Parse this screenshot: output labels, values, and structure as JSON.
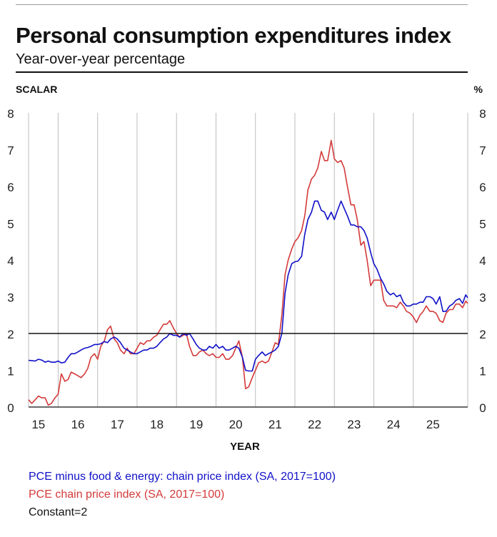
{
  "header": {
    "title": "Personal consumption expenditures index",
    "subtitle": "Year-over-year percentage"
  },
  "axes": {
    "left_label": "SCALAR",
    "right_label": "%",
    "x_label": "YEAR"
  },
  "legend": [
    {
      "label": "PCE minus food & energy: chain price index (SA, 2017=100)",
      "color": "#1010c8"
    },
    {
      "label": "PCE chain price index (SA, 2017=100)",
      "color": "#d43a3a"
    },
    {
      "label": "Constant=2",
      "color": "#111111"
    }
  ],
  "chart_data": {
    "type": "line",
    "xlabel": "YEAR",
    "ylabel_left": "SCALAR",
    "ylabel_right": "%",
    "xlim": [
      2014.75,
      2025.88
    ],
    "ylim": [
      0,
      8
    ],
    "x_ticks": [
      2015,
      2016,
      2017,
      2018,
      2019,
      2020,
      2021,
      2022,
      2023,
      2024,
      2025
    ],
    "x_tick_labels": [
      "15",
      "16",
      "17",
      "18",
      "19",
      "20",
      "21",
      "22",
      "23",
      "24",
      "25"
    ],
    "y_ticks": [
      0,
      1,
      2,
      3,
      4,
      5,
      6,
      7,
      8
    ],
    "grid": "vertical",
    "series": [
      {
        "name": "PCE minus food & energy: chain price index (SA, 2017=100)",
        "color": "#1010c8",
        "points": [
          [
            2014.75,
            1.27
          ],
          [
            2014.92,
            1.25
          ],
          [
            2015.0,
            1.3
          ],
          [
            2015.08,
            1.28
          ],
          [
            2015.17,
            1.22
          ],
          [
            2015.25,
            1.25
          ],
          [
            2015.33,
            1.22
          ],
          [
            2015.42,
            1.22
          ],
          [
            2015.5,
            1.25
          ],
          [
            2015.58,
            1.2
          ],
          [
            2015.67,
            1.22
          ],
          [
            2015.75,
            1.35
          ],
          [
            2015.83,
            1.45
          ],
          [
            2015.92,
            1.45
          ],
          [
            2016.0,
            1.5
          ],
          [
            2016.08,
            1.55
          ],
          [
            2016.17,
            1.6
          ],
          [
            2016.25,
            1.62
          ],
          [
            2016.33,
            1.65
          ],
          [
            2016.42,
            1.7
          ],
          [
            2016.5,
            1.7
          ],
          [
            2016.58,
            1.72
          ],
          [
            2016.67,
            1.78
          ],
          [
            2016.75,
            1.75
          ],
          [
            2016.83,
            1.85
          ],
          [
            2016.92,
            1.9
          ],
          [
            2017.0,
            1.85
          ],
          [
            2017.08,
            1.75
          ],
          [
            2017.17,
            1.6
          ],
          [
            2017.25,
            1.55
          ],
          [
            2017.33,
            1.5
          ],
          [
            2017.42,
            1.45
          ],
          [
            2017.5,
            1.45
          ],
          [
            2017.58,
            1.5
          ],
          [
            2017.67,
            1.55
          ],
          [
            2017.75,
            1.55
          ],
          [
            2017.83,
            1.6
          ],
          [
            2017.92,
            1.6
          ],
          [
            2018.0,
            1.65
          ],
          [
            2018.08,
            1.75
          ],
          [
            2018.17,
            1.85
          ],
          [
            2018.25,
            1.9
          ],
          [
            2018.33,
            2.0
          ],
          [
            2018.42,
            1.95
          ],
          [
            2018.5,
            1.95
          ],
          [
            2018.58,
            1.9
          ],
          [
            2018.67,
            2.0
          ],
          [
            2018.75,
            1.95
          ],
          [
            2018.83,
            2.0
          ],
          [
            2018.92,
            1.85
          ],
          [
            2019.0,
            1.7
          ],
          [
            2019.08,
            1.6
          ],
          [
            2019.17,
            1.55
          ],
          [
            2019.25,
            1.55
          ],
          [
            2019.33,
            1.65
          ],
          [
            2019.42,
            1.6
          ],
          [
            2019.5,
            1.7
          ],
          [
            2019.58,
            1.6
          ],
          [
            2019.67,
            1.65
          ],
          [
            2019.75,
            1.55
          ],
          [
            2019.83,
            1.55
          ],
          [
            2019.92,
            1.6
          ],
          [
            2020.0,
            1.65
          ],
          [
            2020.08,
            1.6
          ],
          [
            2020.17,
            1.35
          ],
          [
            2020.25,
            1.0
          ],
          [
            2020.33,
            0.98
          ],
          [
            2020.42,
            0.98
          ],
          [
            2020.5,
            1.3
          ],
          [
            2020.58,
            1.4
          ],
          [
            2020.67,
            1.5
          ],
          [
            2020.75,
            1.4
          ],
          [
            2020.83,
            1.45
          ],
          [
            2020.92,
            1.5
          ],
          [
            2021.0,
            1.55
          ],
          [
            2021.08,
            1.65
          ],
          [
            2021.17,
            2.0
          ],
          [
            2021.25,
            3.1
          ],
          [
            2021.33,
            3.6
          ],
          [
            2021.42,
            3.9
          ],
          [
            2021.5,
            3.95
          ],
          [
            2021.58,
            3.97
          ],
          [
            2021.67,
            4.1
          ],
          [
            2021.75,
            4.7
          ],
          [
            2021.83,
            5.1
          ],
          [
            2021.92,
            5.3
          ],
          [
            2022.0,
            5.6
          ],
          [
            2022.08,
            5.6
          ],
          [
            2022.17,
            5.35
          ],
          [
            2022.25,
            5.3
          ],
          [
            2022.33,
            5.1
          ],
          [
            2022.42,
            5.3
          ],
          [
            2022.5,
            5.1
          ],
          [
            2022.58,
            5.35
          ],
          [
            2022.67,
            5.6
          ],
          [
            2022.75,
            5.4
          ],
          [
            2022.83,
            5.2
          ],
          [
            2022.92,
            4.95
          ],
          [
            2023.0,
            4.95
          ],
          [
            2023.08,
            4.9
          ],
          [
            2023.17,
            4.9
          ],
          [
            2023.25,
            4.8
          ],
          [
            2023.33,
            4.6
          ],
          [
            2023.42,
            4.2
          ],
          [
            2023.5,
            3.9
          ],
          [
            2023.58,
            3.75
          ],
          [
            2023.67,
            3.5
          ],
          [
            2023.75,
            3.35
          ],
          [
            2023.83,
            3.15
          ],
          [
            2023.92,
            3.05
          ],
          [
            2024.0,
            3.1
          ],
          [
            2024.08,
            3.0
          ],
          [
            2024.17,
            3.05
          ],
          [
            2024.25,
            2.85
          ],
          [
            2024.33,
            2.75
          ],
          [
            2024.42,
            2.75
          ],
          [
            2024.5,
            2.8
          ],
          [
            2024.58,
            2.8
          ],
          [
            2024.67,
            2.85
          ],
          [
            2024.75,
            2.85
          ],
          [
            2024.83,
            3.0
          ],
          [
            2024.92,
            3.0
          ],
          [
            2025.0,
            2.95
          ],
          [
            2025.08,
            2.8
          ],
          [
            2025.17,
            3.0
          ],
          [
            2025.25,
            2.6
          ],
          [
            2025.33,
            2.6
          ],
          [
            2025.42,
            2.75
          ],
          [
            2025.5,
            2.8
          ],
          [
            2025.58,
            2.9
          ],
          [
            2025.67,
            2.95
          ],
          [
            2025.75,
            2.82
          ],
          [
            2025.83,
            3.05
          ],
          [
            2025.88,
            2.97
          ]
        ]
      },
      {
        "name": "PCE chain price index (SA, 2017=100)",
        "color": "#d43a3a",
        "points": [
          [
            2014.75,
            0.2
          ],
          [
            2014.83,
            0.1
          ],
          [
            2014.92,
            0.2
          ],
          [
            2015.0,
            0.3
          ],
          [
            2015.08,
            0.25
          ],
          [
            2015.17,
            0.25
          ],
          [
            2015.25,
            0.05
          ],
          [
            2015.33,
            0.1
          ],
          [
            2015.42,
            0.25
          ],
          [
            2015.5,
            0.35
          ],
          [
            2015.58,
            0.9
          ],
          [
            2015.67,
            0.7
          ],
          [
            2015.75,
            0.75
          ],
          [
            2015.83,
            0.95
          ],
          [
            2015.92,
            0.9
          ],
          [
            2016.0,
            0.85
          ],
          [
            2016.08,
            0.8
          ],
          [
            2016.17,
            0.9
          ],
          [
            2016.25,
            1.05
          ],
          [
            2016.33,
            1.35
          ],
          [
            2016.42,
            1.45
          ],
          [
            2016.5,
            1.3
          ],
          [
            2016.58,
            1.65
          ],
          [
            2016.67,
            1.8
          ],
          [
            2016.75,
            2.1
          ],
          [
            2016.83,
            2.2
          ],
          [
            2016.92,
            1.85
          ],
          [
            2017.0,
            1.75
          ],
          [
            2017.08,
            1.55
          ],
          [
            2017.17,
            1.45
          ],
          [
            2017.25,
            1.6
          ],
          [
            2017.33,
            1.45
          ],
          [
            2017.42,
            1.45
          ],
          [
            2017.5,
            1.6
          ],
          [
            2017.58,
            1.75
          ],
          [
            2017.67,
            1.7
          ],
          [
            2017.75,
            1.8
          ],
          [
            2017.83,
            1.8
          ],
          [
            2017.92,
            1.9
          ],
          [
            2018.0,
            1.95
          ],
          [
            2018.08,
            2.1
          ],
          [
            2018.17,
            2.25
          ],
          [
            2018.25,
            2.25
          ],
          [
            2018.33,
            2.35
          ],
          [
            2018.42,
            2.15
          ],
          [
            2018.5,
            2.0
          ],
          [
            2018.58,
            1.9
          ],
          [
            2018.67,
            1.95
          ],
          [
            2018.75,
            2.0
          ],
          [
            2018.83,
            1.65
          ],
          [
            2018.92,
            1.4
          ],
          [
            2019.0,
            1.4
          ],
          [
            2019.08,
            1.5
          ],
          [
            2019.17,
            1.55
          ],
          [
            2019.25,
            1.45
          ],
          [
            2019.33,
            1.4
          ],
          [
            2019.42,
            1.45
          ],
          [
            2019.5,
            1.35
          ],
          [
            2019.58,
            1.35
          ],
          [
            2019.67,
            1.45
          ],
          [
            2019.75,
            1.3
          ],
          [
            2019.83,
            1.3
          ],
          [
            2019.92,
            1.4
          ],
          [
            2020.0,
            1.6
          ],
          [
            2020.08,
            1.8
          ],
          [
            2020.17,
            1.35
          ],
          [
            2020.25,
            0.5
          ],
          [
            2020.33,
            0.55
          ],
          [
            2020.42,
            0.8
          ],
          [
            2020.5,
            1.0
          ],
          [
            2020.58,
            1.2
          ],
          [
            2020.67,
            1.25
          ],
          [
            2020.75,
            1.2
          ],
          [
            2020.83,
            1.25
          ],
          [
            2020.92,
            1.5
          ],
          [
            2021.0,
            1.75
          ],
          [
            2021.08,
            1.7
          ],
          [
            2021.17,
            2.5
          ],
          [
            2021.25,
            3.6
          ],
          [
            2021.33,
            4.0
          ],
          [
            2021.42,
            4.3
          ],
          [
            2021.5,
            4.5
          ],
          [
            2021.58,
            4.6
          ],
          [
            2021.67,
            4.8
          ],
          [
            2021.75,
            5.2
          ],
          [
            2021.83,
            5.9
          ],
          [
            2021.92,
            6.2
          ],
          [
            2022.0,
            6.3
          ],
          [
            2022.08,
            6.5
          ],
          [
            2022.17,
            6.95
          ],
          [
            2022.25,
            6.7
          ],
          [
            2022.33,
            6.7
          ],
          [
            2022.42,
            7.25
          ],
          [
            2022.5,
            6.75
          ],
          [
            2022.58,
            6.65
          ],
          [
            2022.67,
            6.7
          ],
          [
            2022.75,
            6.5
          ],
          [
            2022.83,
            6.0
          ],
          [
            2022.92,
            5.5
          ],
          [
            2023.0,
            5.5
          ],
          [
            2023.08,
            5.1
          ],
          [
            2023.17,
            4.4
          ],
          [
            2023.25,
            4.5
          ],
          [
            2023.33,
            4.0
          ],
          [
            2023.42,
            3.3
          ],
          [
            2023.5,
            3.45
          ],
          [
            2023.58,
            3.45
          ],
          [
            2023.67,
            3.45
          ],
          [
            2023.75,
            2.9
          ],
          [
            2023.83,
            2.75
          ],
          [
            2023.92,
            2.75
          ],
          [
            2024.0,
            2.75
          ],
          [
            2024.08,
            2.7
          ],
          [
            2024.17,
            2.85
          ],
          [
            2024.25,
            2.75
          ],
          [
            2024.33,
            2.6
          ],
          [
            2024.42,
            2.55
          ],
          [
            2024.5,
            2.45
          ],
          [
            2024.58,
            2.3
          ],
          [
            2024.67,
            2.5
          ],
          [
            2024.75,
            2.6
          ],
          [
            2024.83,
            2.75
          ],
          [
            2024.92,
            2.6
          ],
          [
            2025.0,
            2.6
          ],
          [
            2025.08,
            2.55
          ],
          [
            2025.17,
            2.35
          ],
          [
            2025.25,
            2.3
          ],
          [
            2025.33,
            2.55
          ],
          [
            2025.42,
            2.65
          ],
          [
            2025.5,
            2.65
          ],
          [
            2025.58,
            2.8
          ],
          [
            2025.67,
            2.8
          ],
          [
            2025.75,
            2.7
          ],
          [
            2025.83,
            2.88
          ],
          [
            2025.88,
            2.82
          ]
        ]
      },
      {
        "name": "Constant=2",
        "color": "#111111",
        "points": [
          [
            2014.75,
            2
          ],
          [
            2025.88,
            2
          ]
        ]
      }
    ]
  }
}
